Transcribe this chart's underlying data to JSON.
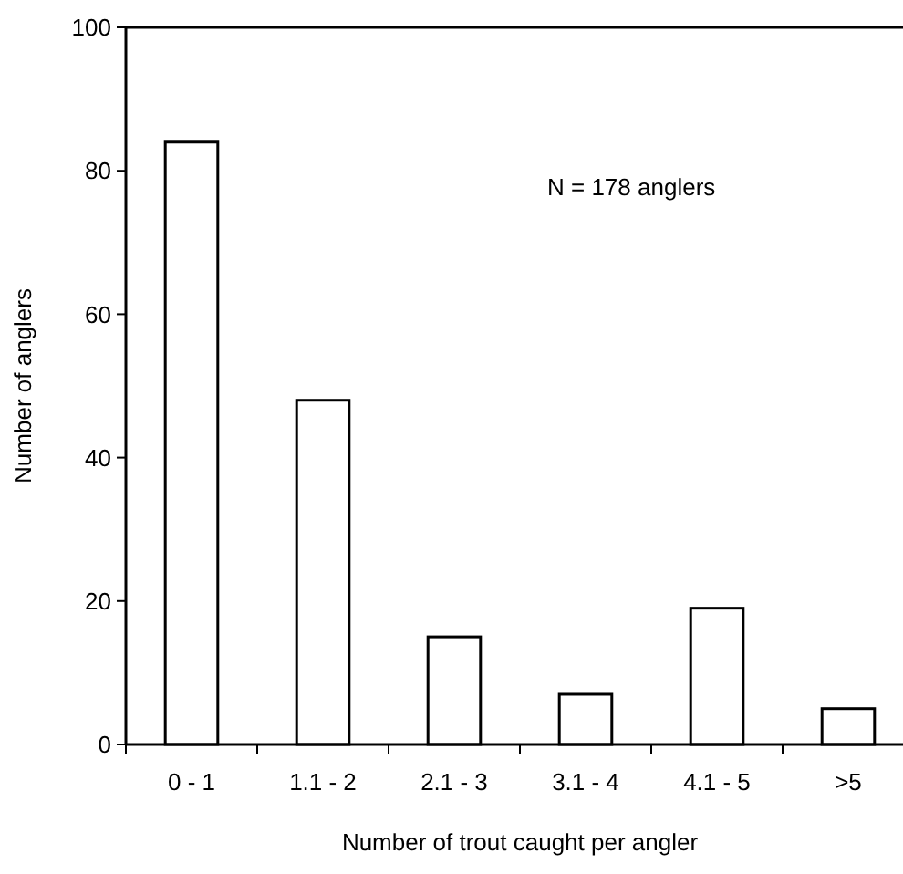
{
  "chart_data": {
    "type": "bar",
    "xlabel": "Number of trout caught per angler",
    "ylabel": "Number of anglers",
    "categories": [
      "0 - 1",
      "1.1 - 2",
      "2.1 - 3",
      "3.1 - 4",
      "4.1 - 5",
      ">5"
    ],
    "values": [
      84,
      48,
      15,
      7,
      19,
      5
    ],
    "color": "#ffffff",
    "ylim": [
      0,
      100
    ],
    "yticks": [
      0,
      20,
      40,
      60,
      80,
      100
    ],
    "grid": false,
    "annotations": [
      "N = 178 anglers"
    ]
  }
}
